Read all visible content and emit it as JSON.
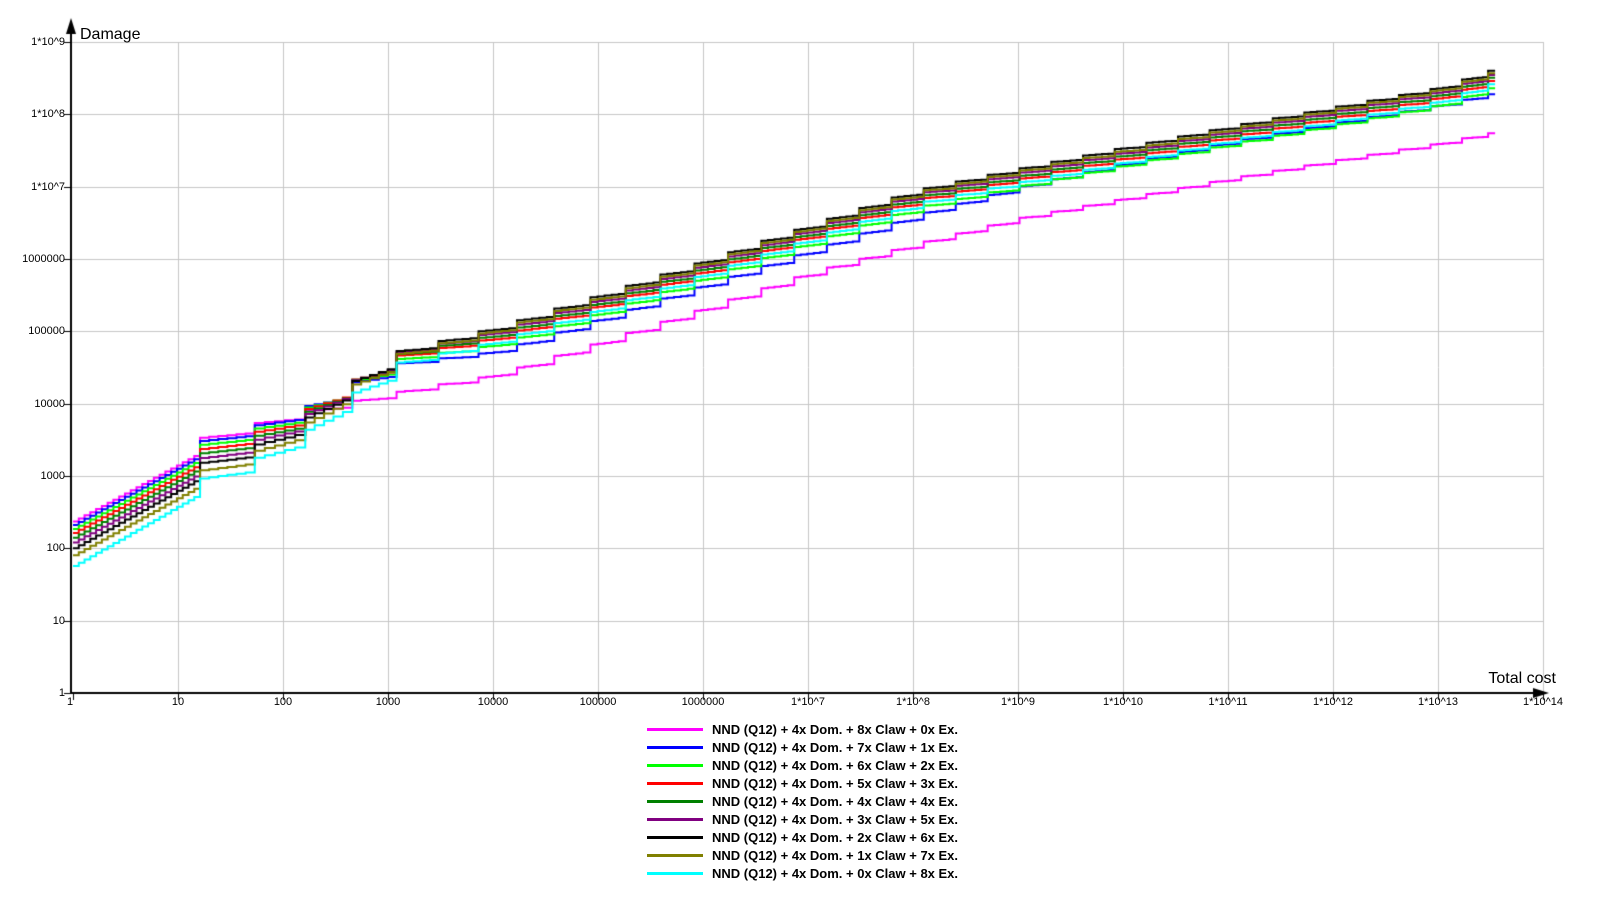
{
  "chart_data": {
    "type": "line-step",
    "x_scale": "log",
    "y_scale": "log",
    "x_axis_title": "Total cost",
    "y_axis_title": "Damage",
    "x_range": [
      1,
      100000000000000.0
    ],
    "y_range": [
      1,
      1000000000.0
    ],
    "grid": true,
    "grid_color": "#C6C6C6",
    "axis_color": "#000000",
    "background": "#FFFFFF",
    "legend_position": "bottom-center",
    "x_tick_labels": [
      "1",
      "10",
      "100",
      "1000",
      "10000",
      "100000",
      "1000000",
      "1*10^7",
      "1*10^8",
      "1*10^9",
      "1*10^10",
      "1*10^11",
      "1*10^12",
      "1*10^13",
      "1*10^14"
    ],
    "y_tick_labels": [
      "1",
      "10",
      "100",
      "1000",
      "10000",
      "100000",
      "1000000",
      "1*10^7",
      "1*10^8",
      "1*10^9"
    ],
    "x": [
      1,
      10,
      100,
      1000,
      10000,
      100000,
      1000000,
      10000000.0,
      100000000.0,
      1000000000.0,
      10000000000.0,
      100000000000.0,
      1000000000000.0,
      10000000000000.0,
      30000000000000.0
    ],
    "series": [
      {
        "name": "NND (Q12) + 4x Dom. + 8x Claw + 0x Ex.",
        "color": "#FF00FF",
        "values": [
          235,
          2800,
          6900,
          14000,
          25000,
          71000,
          210000,
          650000,
          1600000,
          3700000,
          6900000,
          13000000,
          23000000,
          40000000,
          55000000
        ]
      },
      {
        "name": "NND (Q12) + 4x Dom. + 7x Claw + 1x Ex.",
        "color": "#0000FF",
        "values": [
          210,
          2500,
          6500,
          35000,
          52000,
          150000,
          440000,
          1300000,
          4000000,
          10000000,
          21000000,
          42000000,
          76000000,
          135000000,
          190000000
        ]
      },
      {
        "name": "NND (Q12) + 4x Dom. + 6x Claw + 2x Ex.",
        "color": "#00FF00",
        "values": [
          185,
          2200,
          5900,
          40000,
          65000,
          180000,
          550000,
          1700000,
          5100000,
          10200000,
          20000000,
          39000000,
          72000000,
          135000000,
          230000000
        ]
      },
      {
        "name": "NND (Q12) + 4x Dom. + 5x Claw + 3x Ex.",
        "color": "#FF0000",
        "values": [
          163,
          1900,
          5400,
          44000,
          81000,
          230000,
          690000,
          2140000,
          6500000,
          12900000,
          25000000,
          49000000,
          91000000,
          170000000,
          290000000
        ]
      },
      {
        "name": "NND (Q12) + 4x Dom. + 4x Claw + 4x Ex.",
        "color": "#008000",
        "values": [
          140,
          1650,
          4800,
          46000,
          89000,
          250000,
          760000,
          2340000,
          7100000,
          14000000,
          27500000,
          54000000,
          100000000,
          186000000,
          320000000
        ]
      },
      {
        "name": "NND (Q12) + 4x Dom. + 3x Claw + 5x Ex.",
        "color": "#800080",
        "values": [
          120,
          1400,
          4300,
          48000,
          98000,
          275000,
          830000,
          2570000,
          7800000,
          15500000,
          30000000,
          59000000,
          110000000,
          204000000,
          350000000
        ]
      },
      {
        "name": "NND (Q12) + 4x Dom. + 2x Claw + 6x Ex.",
        "color": "#000000",
        "values": [
          100,
          1200,
          3700,
          50000,
          112000,
          320000,
          950000,
          2950000,
          8900000,
          17800000,
          35000000,
          68000000,
          126000000,
          234000000,
          400000000
        ]
      },
      {
        "name": "NND (Q12) + 4x Dom. + 1x Claw + 7x Ex.",
        "color": "#808000",
        "values": [
          80,
          930,
          3100,
          46000,
          105000,
          295000,
          890000,
          2750000,
          8300000,
          16600000,
          32000000,
          63000000,
          118000000,
          219000000,
          370000000
        ]
      },
      {
        "name": "NND (Q12) + 4x Dom. + 0x Claw + 8x Ex.",
        "color": "#00FFFF",
        "values": [
          57,
          710,
          2500,
          35000,
          72000,
          200000,
          620000,
          1900000,
          5800000,
          11500000,
          22000000,
          44000000,
          81000000,
          151000000,
          260000000
        ]
      }
    ]
  }
}
